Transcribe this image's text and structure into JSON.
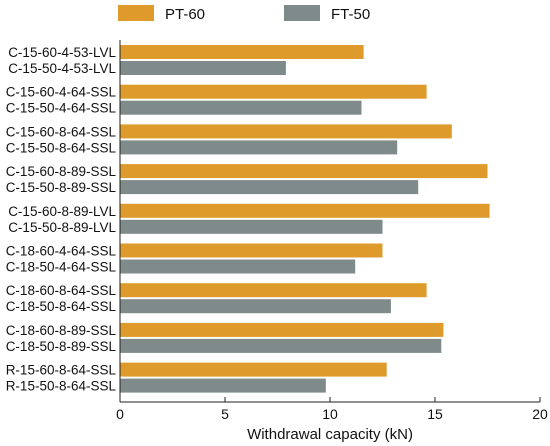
{
  "chart_data": {
    "type": "bar",
    "orientation": "horizontal",
    "xlabel": "Withdrawal capacity (kN)",
    "xlim": [
      0,
      20
    ],
    "xticks": [
      0,
      5,
      10,
      15,
      20
    ],
    "grid": false,
    "legend_position": "top",
    "colors": {
      "PT-60": "#DE9A2A",
      "FT-50": "#7F8A8A"
    },
    "legend": [
      {
        "name": "PT-60",
        "color": "#DE9A2A"
      },
      {
        "name": "FT-50",
        "color": "#7F8A8A"
      }
    ],
    "groups": [
      {
        "bars": [
          {
            "label": "C-15-60-4-53-LVL",
            "series": "PT-60",
            "value": 11.6
          },
          {
            "label": "C-15-50-4-53-LVL",
            "series": "FT-50",
            "value": 7.9
          }
        ]
      },
      {
        "bars": [
          {
            "label": "C-15-60-4-64-SSL",
            "series": "PT-60",
            "value": 14.6
          },
          {
            "label": "C-15-50-4-64-SSL",
            "series": "FT-50",
            "value": 11.5
          }
        ]
      },
      {
        "bars": [
          {
            "label": "C-15-60-8-64-SSL",
            "series": "PT-60",
            "value": 15.8
          },
          {
            "label": "C-15-50-8-64-SSL",
            "series": "FT-50",
            "value": 13.2
          }
        ]
      },
      {
        "bars": [
          {
            "label": "C-15-60-8-89-SSL",
            "series": "PT-60",
            "value": 17.5
          },
          {
            "label": "C-15-50-8-89-SSL",
            "series": "FT-50",
            "value": 14.2
          }
        ]
      },
      {
        "bars": [
          {
            "label": "C-15-60-8-89-LVL",
            "series": "PT-60",
            "value": 17.6
          },
          {
            "label": "C-15-50-8-89-LVL",
            "series": "FT-50",
            "value": 12.5
          }
        ]
      },
      {
        "bars": [
          {
            "label": "C-18-60-4-64-SSL",
            "series": "PT-60",
            "value": 12.5
          },
          {
            "label": "C-18-50-4-64-SSL",
            "series": "FT-50",
            "value": 11.2
          }
        ]
      },
      {
        "bars": [
          {
            "label": "C-18-60-8-64-SSL",
            "series": "PT-60",
            "value": 14.6
          },
          {
            "label": "C-18-50-8-64-SSL",
            "series": "FT-50",
            "value": 12.9
          }
        ]
      },
      {
        "bars": [
          {
            "label": "C-18-60-8-89-SSL",
            "series": "PT-60",
            "value": 15.4
          },
          {
            "label": "C-18-50-8-89-SSL",
            "series": "FT-50",
            "value": 15.3
          }
        ]
      },
      {
        "bars": [
          {
            "label": "R-15-60-8-64-SSL",
            "series": "PT-60",
            "value": 12.7
          },
          {
            "label": "R-15-50-8-64-SSL",
            "series": "FT-50",
            "value": 9.8
          }
        ]
      }
    ]
  }
}
